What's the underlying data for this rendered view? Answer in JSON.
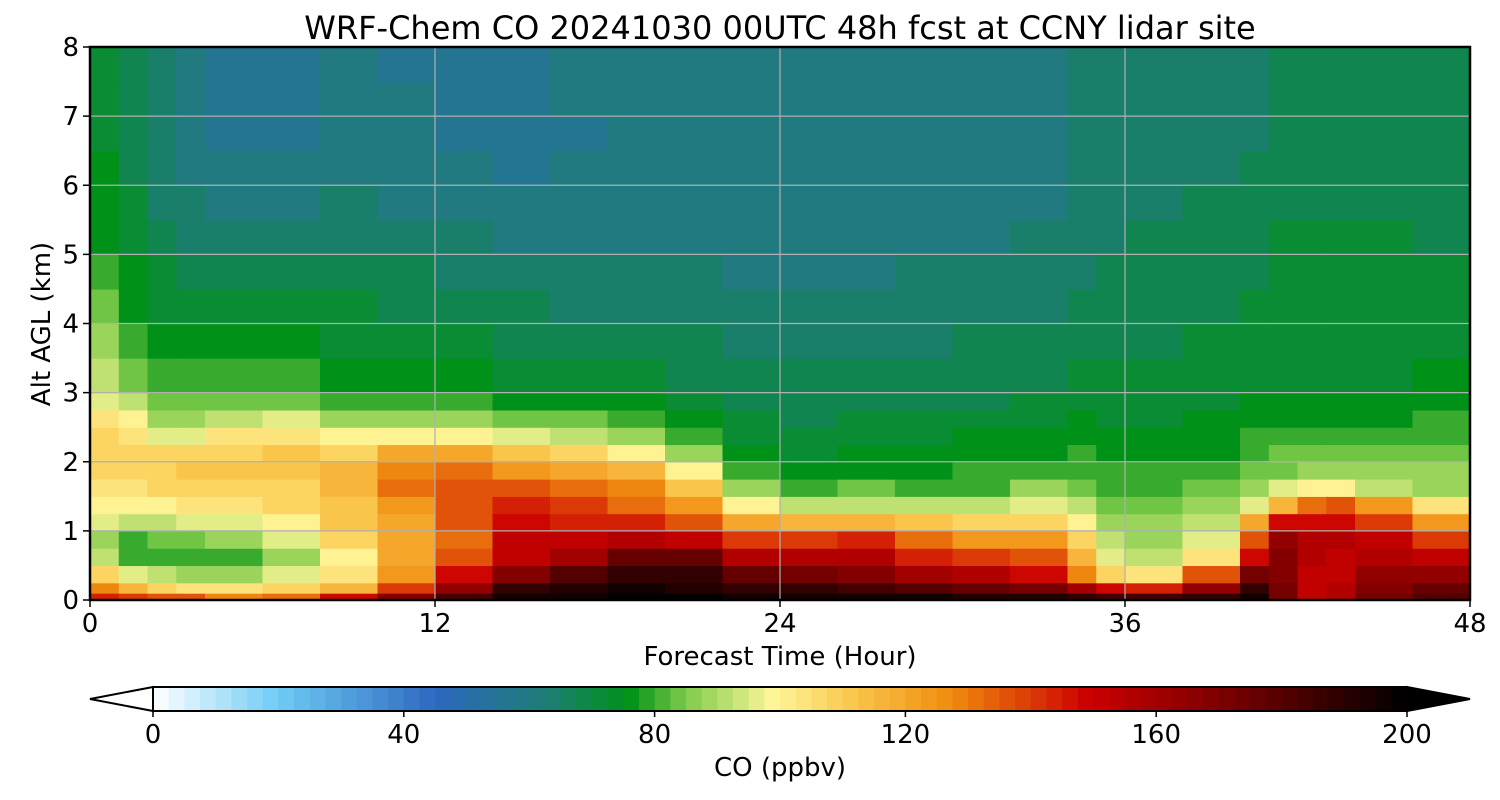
{
  "chart_data": {
    "type": "heatmap",
    "subtype": "filled-contour time-height cross-section",
    "title": "WRF-Chem CO  20241030 00UTC 48h fcst at CCNY lidar site",
    "xlabel": "Forecast Time (Hour)",
    "ylabel": "Alt AGL (km)",
    "xlim": [
      0,
      48
    ],
    "ylim": [
      0,
      8
    ],
    "x_ticks": [
      0,
      12,
      24,
      36,
      48
    ],
    "y_ticks": [
      0,
      1,
      2,
      3,
      4,
      5,
      6,
      7,
      8
    ],
    "grid": true,
    "colorbar": {
      "label": "CO  (ppbv)",
      "orientation": "horizontal",
      "placement": "bottom",
      "range": [
        0,
        200
      ],
      "ticks": [
        0,
        40,
        80,
        120,
        160,
        200
      ],
      "extend": "both",
      "colormap_stops": [
        {
          "value": 0,
          "color": "#ffffff"
        },
        {
          "value": 20,
          "color": "#6ecbf5"
        },
        {
          "value": 45,
          "color": "#2e68c0"
        },
        {
          "value": 62,
          "color": "#1e7c78"
        },
        {
          "value": 76,
          "color": "#009218"
        },
        {
          "value": 85,
          "color": "#7ecb4a"
        },
        {
          "value": 99,
          "color": "#fff699"
        },
        {
          "value": 112,
          "color": "#f9c54a"
        },
        {
          "value": 127,
          "color": "#f08d10"
        },
        {
          "value": 149,
          "color": "#cc0000"
        },
        {
          "value": 175,
          "color": "#6a0000"
        },
        {
          "value": 200,
          "color": "#000000"
        }
      ]
    },
    "grid_hours": [
      0,
      1,
      2,
      3,
      4,
      6,
      8,
      10,
      12,
      14,
      16,
      18,
      20,
      22,
      24,
      26,
      28,
      30,
      32,
      34,
      35,
      36,
      38,
      40,
      41,
      42,
      43,
      44,
      46,
      48
    ],
    "grid_alt_km": [
      0,
      0.1,
      0.25,
      0.5,
      0.75,
      1,
      1.25,
      1.5,
      1.75,
      2,
      2.25,
      2.5,
      2.75,
      3,
      3.5,
      4,
      4.5,
      5,
      5.5,
      6,
      6.5,
      7,
      7.5,
      8
    ],
    "profiles": {
      "0": [
        [
          0,
          150
        ],
        [
          0.3,
          125
        ],
        [
          0.6,
          100
        ],
        [
          1.0,
          97
        ],
        [
          1.3,
          104
        ],
        [
          2.0,
          108
        ],
        [
          2.6,
          104
        ],
        [
          3.2,
          96
        ],
        [
          4.2,
          86
        ],
        [
          5.2,
          80
        ],
        [
          6.5,
          76
        ],
        [
          8,
          74
        ]
      ],
      "1": [
        [
          0,
          150
        ],
        [
          0.25,
          110
        ],
        [
          0.5,
          82
        ],
        [
          0.9,
          80
        ],
        [
          1.2,
          96
        ],
        [
          2.0,
          110
        ],
        [
          2.7,
          104
        ],
        [
          3.0,
          88
        ],
        [
          4.0,
          80
        ],
        [
          5.5,
          74
        ],
        [
          7,
          70
        ],
        [
          8,
          70
        ]
      ],
      "3": [
        [
          0,
          150
        ],
        [
          0.15,
          108
        ],
        [
          0.5,
          78
        ],
        [
          0.8,
          80
        ],
        [
          1.2,
          98
        ],
        [
          1.8,
          112
        ],
        [
          2.2,
          104
        ],
        [
          2.5,
          86
        ],
        [
          3.5,
          78
        ],
        [
          5,
          66
        ],
        [
          6.5,
          60
        ],
        [
          8,
          62
        ]
      ],
      "6": [
        [
          0,
          140
        ],
        [
          0.1,
          108
        ],
        [
          0.5,
          80
        ],
        [
          0.9,
          88
        ],
        [
          1.4,
          104
        ],
        [
          2.0,
          114
        ],
        [
          2.5,
          104
        ],
        [
          2.8,
          86
        ],
        [
          3.5,
          78
        ],
        [
          5,
          66
        ],
        [
          6.5,
          56
        ],
        [
          8,
          56
        ]
      ],
      "9": [
        [
          0,
          160
        ],
        [
          0.15,
          118
        ],
        [
          0.5,
          98
        ],
        [
          1.0,
          110
        ],
        [
          1.6,
          114
        ],
        [
          2.0,
          114
        ],
        [
          2.4,
          100
        ],
        [
          2.8,
          82
        ],
        [
          3.5,
          74
        ],
        [
          5,
          66
        ],
        [
          6.5,
          60
        ],
        [
          8,
          60
        ]
      ],
      "12": [
        [
          0,
          185
        ],
        [
          0.25,
          140
        ],
        [
          0.7,
          124
        ],
        [
          1.2,
          128
        ],
        [
          1.7,
          140
        ],
        [
          2.1,
          128
        ],
        [
          2.4,
          100
        ],
        [
          2.7,
          82
        ],
        [
          3.5,
          72
        ],
        [
          5,
          64
        ],
        [
          6.5,
          58
        ],
        [
          8,
          56
        ]
      ],
      "15": [
        [
          0,
          200
        ],
        [
          0.3,
          180
        ],
        [
          0.5,
          152
        ],
        [
          1.0,
          150
        ],
        [
          1.5,
          142
        ],
        [
          2.0,
          120
        ],
        [
          2.4,
          94
        ],
        [
          2.8,
          78
        ],
        [
          3.5,
          70
        ],
        [
          5,
          62
        ],
        [
          6.5,
          56
        ],
        [
          8,
          58
        ]
      ],
      "18": [
        [
          0,
          200
        ],
        [
          0.4,
          185
        ],
        [
          0.7,
          160
        ],
        [
          1.2,
          140
        ],
        [
          1.8,
          124
        ],
        [
          2.1,
          106
        ],
        [
          2.5,
          84
        ],
        [
          3.0,
          74
        ],
        [
          4,
          66
        ],
        [
          5.5,
          60
        ],
        [
          7,
          58
        ],
        [
          8,
          60
        ]
      ],
      "20": [
        [
          0,
          200
        ],
        [
          0.6,
          190
        ],
        [
          0.9,
          155
        ],
        [
          1.3,
          135
        ],
        [
          1.8,
          118
        ],
        [
          2.1,
          95
        ],
        [
          2.5,
          80
        ],
        [
          3.5,
          70
        ],
        [
          5,
          62
        ],
        [
          6.5,
          58
        ],
        [
          8,
          60
        ]
      ],
      "22": [
        [
          0,
          200
        ],
        [
          0.4,
          178
        ],
        [
          0.8,
          148
        ],
        [
          1.2,
          124
        ],
        [
          1.6,
          98
        ],
        [
          2.0,
          80
        ],
        [
          3.0,
          68
        ],
        [
          4.5,
          62
        ],
        [
          6,
          60
        ],
        [
          8,
          62
        ]
      ],
      "24": [
        [
          0,
          200
        ],
        [
          0.35,
          175
        ],
        [
          0.7,
          148
        ],
        [
          1.0,
          122
        ],
        [
          1.3,
          92
        ],
        [
          1.6,
          78
        ],
        [
          2.5,
          68
        ],
        [
          4,
          62
        ],
        [
          6,
          60
        ],
        [
          8,
          62
        ]
      ],
      "26": [
        [
          0,
          200
        ],
        [
          0.35,
          170
        ],
        [
          0.8,
          155
        ],
        [
          1.1,
          124
        ],
        [
          1.4,
          92
        ],
        [
          1.8,
          78
        ],
        [
          3,
          68
        ],
        [
          4.5,
          62
        ],
        [
          6,
          60
        ],
        [
          8,
          62
        ]
      ],
      "30": [
        [
          0,
          200
        ],
        [
          0.3,
          165
        ],
        [
          0.6,
          142
        ],
        [
          1.0,
          120
        ],
        [
          1.2,
          98
        ],
        [
          1.6,
          80
        ],
        [
          3,
          68
        ],
        [
          5,
          62
        ],
        [
          6.5,
          58
        ],
        [
          8,
          60
        ]
      ],
      "34": [
        [
          0,
          200
        ],
        [
          0.15,
          170
        ],
        [
          0.4,
          140
        ],
        [
          0.9,
          122
        ],
        [
          1.3,
          100
        ],
        [
          1.8,
          82
        ],
        [
          3,
          70
        ],
        [
          5,
          64
        ],
        [
          6.5,
          60
        ],
        [
          8,
          62
        ]
      ],
      "35": [
        [
          0,
          200
        ],
        [
          0.15,
          160
        ],
        [
          0.3,
          122
        ],
        [
          0.6,
          100
        ],
        [
          1.0,
          90
        ],
        [
          1.5,
          84
        ],
        [
          3,
          72
        ],
        [
          5,
          66
        ],
        [
          7,
          64
        ],
        [
          8,
          64
        ]
      ],
      "36": [
        [
          0,
          200
        ],
        [
          0.15,
          148
        ],
        [
          0.3,
          104
        ],
        [
          0.7,
          90
        ],
        [
          1.2,
          86
        ],
        [
          1.7,
          80
        ],
        [
          3,
          70
        ],
        [
          5,
          66
        ],
        [
          7,
          64
        ],
        [
          8,
          64
        ]
      ],
      "38": [
        [
          0,
          200
        ],
        [
          0.15,
          150
        ],
        [
          0.3,
          112
        ],
        [
          0.6,
          94
        ],
        [
          1.2,
          88
        ],
        [
          1.7,
          80
        ],
        [
          3,
          72
        ],
        [
          5,
          68
        ],
        [
          7,
          64
        ],
        [
          8,
          64
        ]
      ],
      "40": [
        [
          0,
          200
        ],
        [
          0.35,
          170
        ],
        [
          0.5,
          128
        ],
        [
          0.8,
          100
        ],
        [
          1.3,
          90
        ],
        [
          1.8,
          80
        ],
        [
          3,
          74
        ],
        [
          5,
          68
        ],
        [
          7,
          64
        ],
        [
          8,
          64
        ]
      ],
      "41": [
        [
          0,
          195
        ],
        [
          0.5,
          178
        ],
        [
          0.8,
          185
        ],
        [
          1.1,
          150
        ],
        [
          1.35,
          108
        ],
        [
          1.7,
          86
        ],
        [
          3,
          74
        ],
        [
          5,
          70
        ],
        [
          7,
          66
        ],
        [
          8,
          66
        ]
      ],
      "42": [
        [
          0,
          150
        ],
        [
          0.5,
          155
        ],
        [
          1.0,
          155
        ],
        [
          1.3,
          140
        ],
        [
          1.5,
          104
        ],
        [
          1.9,
          84
        ],
        [
          3,
          74
        ],
        [
          5,
          72
        ],
        [
          7,
          66
        ],
        [
          8,
          66
        ]
      ],
      "44": [
        [
          0,
          160
        ],
        [
          0.5,
          150
        ],
        [
          1.0,
          155
        ],
        [
          1.4,
          140
        ],
        [
          1.6,
          100
        ],
        [
          2.0,
          84
        ],
        [
          3,
          74
        ],
        [
          5,
          72
        ],
        [
          7,
          66
        ],
        [
          8,
          66
        ]
      ],
      "46": [
        [
          0,
          190
        ],
        [
          0.3,
          178
        ],
        [
          0.6,
          160
        ],
        [
          1.0,
          140
        ],
        [
          1.3,
          110
        ],
        [
          1.6,
          88
        ],
        [
          3,
          74
        ],
        [
          5,
          70
        ],
        [
          7,
          66
        ],
        [
          8,
          66
        ]
      ],
      "48": [
        [
          0,
          178
        ],
        [
          0.3,
          160
        ],
        [
          0.6,
          148
        ],
        [
          1.0,
          128
        ],
        [
          1.3,
          104
        ],
        [
          1.6,
          90
        ],
        [
          3,
          76
        ],
        [
          5,
          70
        ],
        [
          7,
          66
        ],
        [
          8,
          66
        ]
      ]
    }
  }
}
